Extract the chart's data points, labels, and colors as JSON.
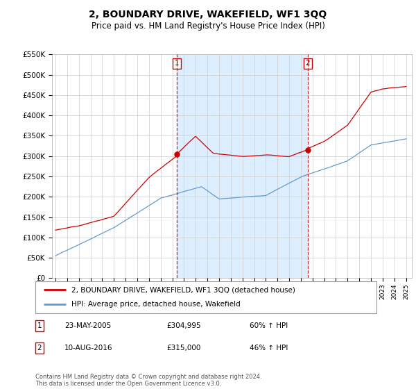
{
  "title": "2, BOUNDARY DRIVE, WAKEFIELD, WF1 3QQ",
  "subtitle": "Price paid vs. HM Land Registry's House Price Index (HPI)",
  "legend_line1": "2, BOUNDARY DRIVE, WAKEFIELD, WF1 3QQ (detached house)",
  "legend_line2": "HPI: Average price, detached house, Wakefield",
  "footnote": "Contains HM Land Registry data © Crown copyright and database right 2024.\nThis data is licensed under the Open Government Licence v3.0.",
  "ylabel_max": 550000,
  "yticks": [
    0,
    50000,
    100000,
    150000,
    200000,
    250000,
    300000,
    350000,
    400000,
    450000,
    500000,
    550000
  ],
  "xlim_start": 1994.7,
  "xlim_end": 2025.5,
  "sale1_x": 2005.385,
  "sale1_y": 304995,
  "sale1_label": "1",
  "sale1_date": "23-MAY-2005",
  "sale1_price": "£304,995",
  "sale1_hpi": "60% ↑ HPI",
  "sale2_x": 2016.6,
  "sale2_y": 315000,
  "sale2_label": "2",
  "sale2_date": "10-AUG-2016",
  "sale2_price": "£315,000",
  "sale2_hpi": "46% ↑ HPI",
  "red_color": "#cc0000",
  "blue_color": "#6699cc",
  "shade_color": "#ddeeff",
  "background_color": "#ffffff",
  "grid_color": "#cccccc"
}
